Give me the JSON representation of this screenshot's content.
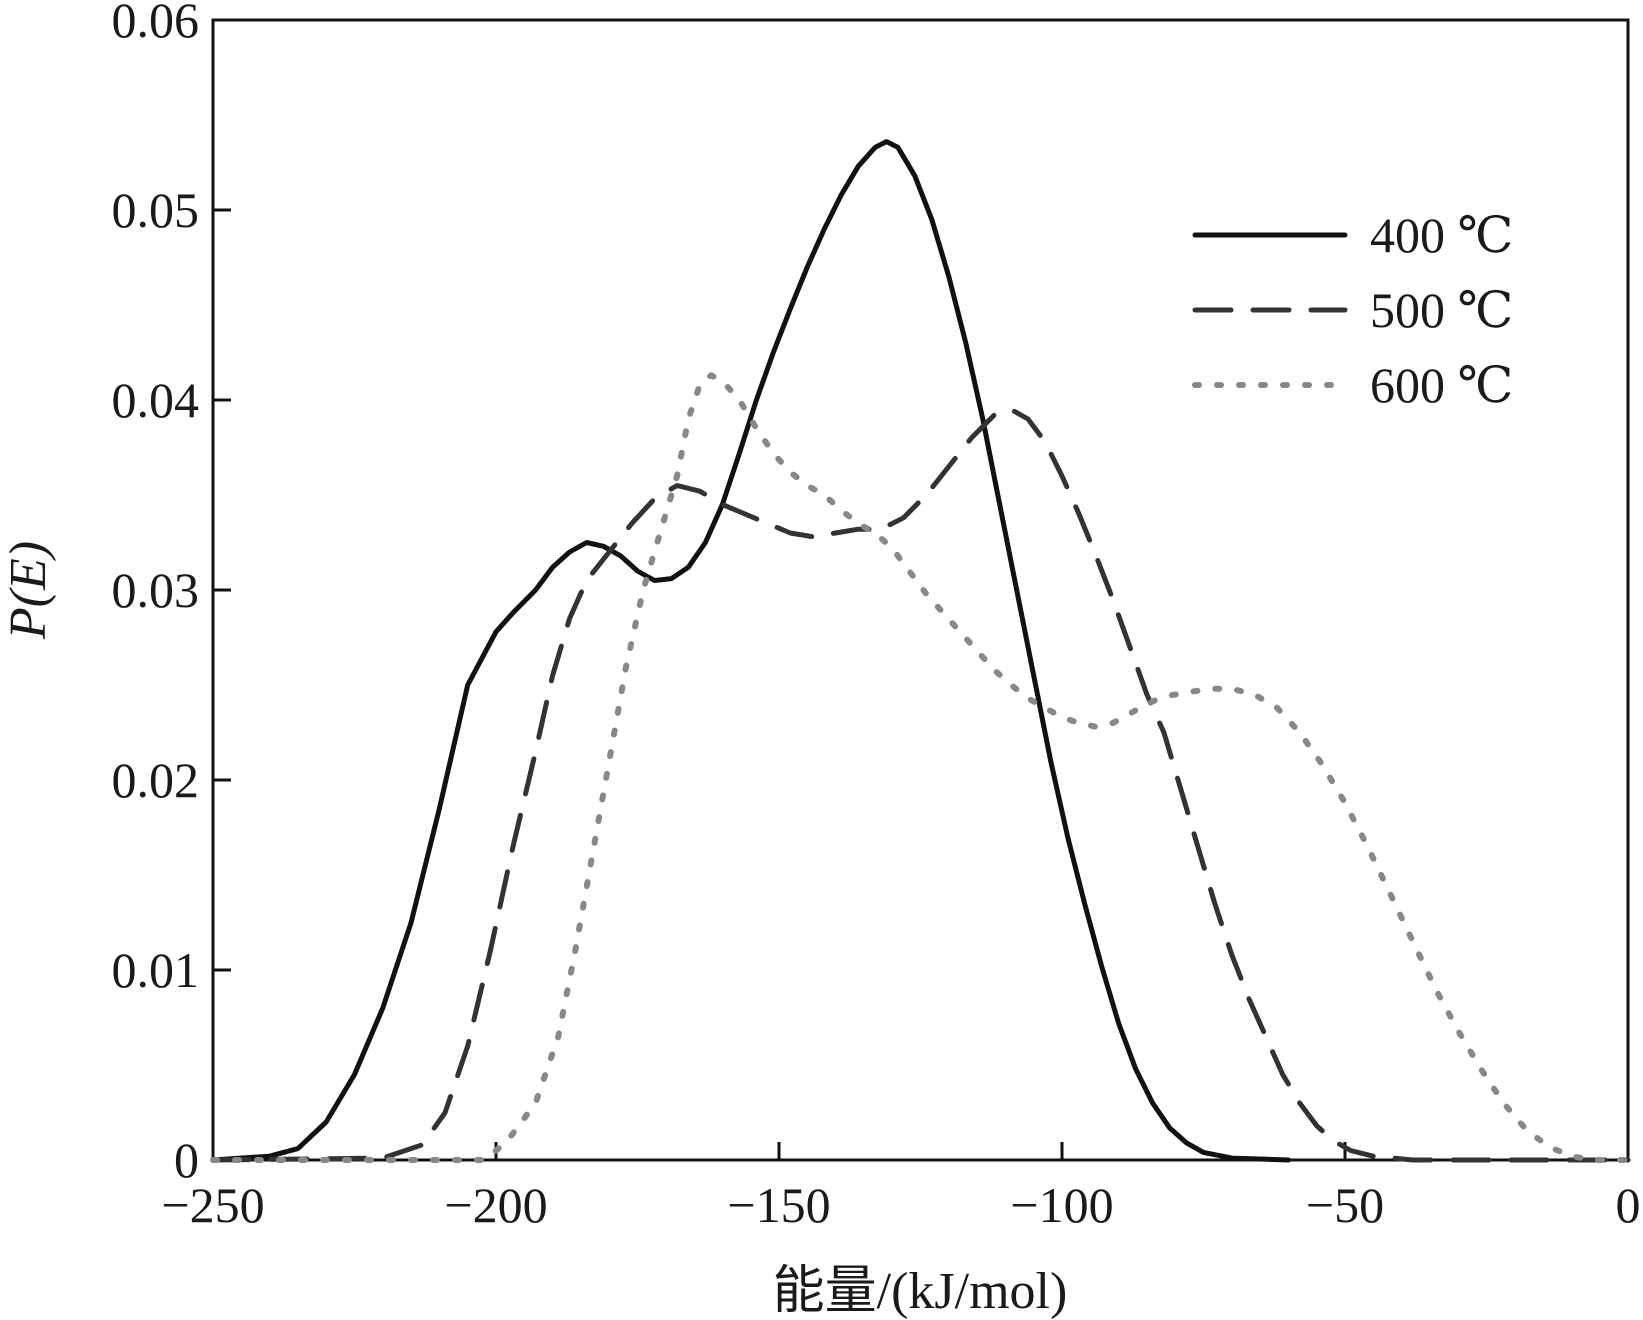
{
  "chart_data": {
    "type": "line",
    "xlabel": "能量/(kJ/mol)",
    "ylabel": "P(E)",
    "xlim": [
      -250,
      0
    ],
    "ylim": [
      0,
      0.06
    ],
    "x_ticks": [
      -250,
      -200,
      -150,
      -100,
      -50,
      0
    ],
    "x_tick_labels": [
      "−250",
      "−200",
      "−150",
      "−100",
      "−50",
      "0"
    ],
    "y_ticks": [
      0,
      0.01,
      0.02,
      0.03,
      0.04,
      0.05,
      0.06
    ],
    "y_tick_labels": [
      "0",
      "0.01",
      "0.02",
      "0.03",
      "0.04",
      "0.05",
      "0.06"
    ],
    "grid": false,
    "legend_position": "top-right",
    "series": [
      {
        "name": "400 ℃",
        "style": "solid",
        "color": "#111111",
        "points": [
          [
            -250,
            0
          ],
          [
            -240,
            0.0002
          ],
          [
            -235,
            0.0006
          ],
          [
            -230,
            0.002
          ],
          [
            -225,
            0.0045
          ],
          [
            -220,
            0.008
          ],
          [
            -215,
            0.0125
          ],
          [
            -210,
            0.0185
          ],
          [
            -205,
            0.025
          ],
          [
            -200,
            0.0278
          ],
          [
            -197,
            0.0288
          ],
          [
            -193,
            0.03
          ],
          [
            -190,
            0.0312
          ],
          [
            -187,
            0.032
          ],
          [
            -184,
            0.0325
          ],
          [
            -181,
            0.0323
          ],
          [
            -178,
            0.0318
          ],
          [
            -175,
            0.031
          ],
          [
            -172,
            0.0305
          ],
          [
            -169,
            0.0306
          ],
          [
            -166,
            0.0312
          ],
          [
            -163,
            0.0325
          ],
          [
            -160,
            0.0345
          ],
          [
            -157,
            0.0372
          ],
          [
            -154,
            0.04
          ],
          [
            -151,
            0.0425
          ],
          [
            -148,
            0.0448
          ],
          [
            -145,
            0.047
          ],
          [
            -142,
            0.049
          ],
          [
            -139,
            0.0508
          ],
          [
            -136,
            0.0523
          ],
          [
            -133,
            0.0533
          ],
          [
            -131,
            0.0536
          ],
          [
            -129,
            0.0533
          ],
          [
            -126,
            0.0518
          ],
          [
            -123,
            0.0495
          ],
          [
            -120,
            0.0465
          ],
          [
            -117,
            0.043
          ],
          [
            -114,
            0.039
          ],
          [
            -111,
            0.0345
          ],
          [
            -108,
            0.03
          ],
          [
            -105,
            0.0255
          ],
          [
            -102,
            0.021
          ],
          [
            -99,
            0.017
          ],
          [
            -96,
            0.0135
          ],
          [
            -93,
            0.0102
          ],
          [
            -90,
            0.0072
          ],
          [
            -87,
            0.0048
          ],
          [
            -84,
            0.003
          ],
          [
            -81,
            0.0017
          ],
          [
            -78,
            0.0009
          ],
          [
            -75,
            0.0004
          ],
          [
            -70,
            0.0001
          ],
          [
            -60,
            0
          ]
        ]
      },
      {
        "name": "500 ℃",
        "style": "dashed",
        "color": "#333333",
        "points": [
          [
            -250,
            0
          ],
          [
            -220,
            0.0001
          ],
          [
            -213,
            0.0008
          ],
          [
            -209,
            0.0025
          ],
          [
            -205,
            0.006
          ],
          [
            -201,
            0.011
          ],
          [
            -197,
            0.0165
          ],
          [
            -193,
            0.0215
          ],
          [
            -190,
            0.0255
          ],
          [
            -187,
            0.0285
          ],
          [
            -184,
            0.0305
          ],
          [
            -180,
            0.032
          ],
          [
            -176,
            0.0335
          ],
          [
            -172,
            0.0348
          ],
          [
            -168,
            0.0355
          ],
          [
            -164,
            0.0352
          ],
          [
            -160,
            0.0345
          ],
          [
            -156,
            0.034
          ],
          [
            -152,
            0.0335
          ],
          [
            -148,
            0.033
          ],
          [
            -144,
            0.0328
          ],
          [
            -140,
            0.033
          ],
          [
            -136,
            0.0332
          ],
          [
            -132,
            0.0332
          ],
          [
            -128,
            0.0338
          ],
          [
            -124,
            0.035
          ],
          [
            -120,
            0.0365
          ],
          [
            -116,
            0.038
          ],
          [
            -112,
            0.0392
          ],
          [
            -109,
            0.0395
          ],
          [
            -106,
            0.039
          ],
          [
            -103,
            0.0378
          ],
          [
            -100,
            0.036
          ],
          [
            -97,
            0.034
          ],
          [
            -94,
            0.0318
          ],
          [
            -91,
            0.0295
          ],
          [
            -88,
            0.027
          ],
          [
            -85,
            0.0245
          ],
          [
            -82,
            0.0225
          ],
          [
            -79,
            0.0195
          ],
          [
            -76,
            0.0165
          ],
          [
            -73,
            0.0135
          ],
          [
            -70,
            0.0108
          ],
          [
            -67,
            0.0085
          ],
          [
            -64,
            0.0065
          ],
          [
            -61,
            0.0045
          ],
          [
            -58,
            0.003
          ],
          [
            -55,
            0.0018
          ],
          [
            -52,
            0.001
          ],
          [
            -49,
            0.0005
          ],
          [
            -45,
            0.0002
          ],
          [
            -38,
            0
          ],
          [
            0,
            0
          ]
        ]
      },
      {
        "name": "600 ℃",
        "style": "dotted",
        "color": "#888888",
        "points": [
          [
            -250,
            0
          ],
          [
            -202,
            0
          ],
          [
            -198,
            0.001
          ],
          [
            -193,
            0.003
          ],
          [
            -189,
            0.0065
          ],
          [
            -186,
            0.011
          ],
          [
            -183,
            0.016
          ],
          [
            -180,
            0.021
          ],
          [
            -177,
            0.026
          ],
          [
            -174,
            0.03
          ],
          [
            -171,
            0.033
          ],
          [
            -168,
            0.036
          ],
          [
            -166,
            0.039
          ],
          [
            -164,
            0.0408
          ],
          [
            -162,
            0.0413
          ],
          [
            -160,
            0.041
          ],
          [
            -157,
            0.04
          ],
          [
            -154,
            0.0385
          ],
          [
            -151,
            0.0372
          ],
          [
            -148,
            0.0362
          ],
          [
            -145,
            0.0355
          ],
          [
            -142,
            0.035
          ],
          [
            -139,
            0.0342
          ],
          [
            -136,
            0.0335
          ],
          [
            -133,
            0.033
          ],
          [
            -130,
            0.0322
          ],
          [
            -127,
            0.031
          ],
          [
            -124,
            0.0298
          ],
          [
            -121,
            0.0288
          ],
          [
            -118,
            0.0278
          ],
          [
            -115,
            0.0268
          ],
          [
            -112,
            0.0258
          ],
          [
            -109,
            0.025
          ],
          [
            -106,
            0.0243
          ],
          [
            -103,
            0.0238
          ],
          [
            -100,
            0.0233
          ],
          [
            -97,
            0.023
          ],
          [
            -94,
            0.0228
          ],
          [
            -91,
            0.023
          ],
          [
            -88,
            0.0235
          ],
          [
            -85,
            0.024
          ],
          [
            -82,
            0.0244
          ],
          [
            -78,
            0.0246
          ],
          [
            -74,
            0.0248
          ],
          [
            -70,
            0.0248
          ],
          [
            -66,
            0.0245
          ],
          [
            -62,
            0.0238
          ],
          [
            -58,
            0.0225
          ],
          [
            -54,
            0.0208
          ],
          [
            -50,
            0.0188
          ],
          [
            -46,
            0.0165
          ],
          [
            -42,
            0.014
          ],
          [
            -38,
            0.0115
          ],
          [
            -34,
            0.009
          ],
          [
            -30,
            0.0068
          ],
          [
            -26,
            0.0048
          ],
          [
            -22,
            0.003
          ],
          [
            -18,
            0.0016
          ],
          [
            -14,
            0.0007
          ],
          [
            -10,
            0.0002
          ],
          [
            -6,
            0
          ],
          [
            0,
            0
          ]
        ]
      }
    ]
  }
}
